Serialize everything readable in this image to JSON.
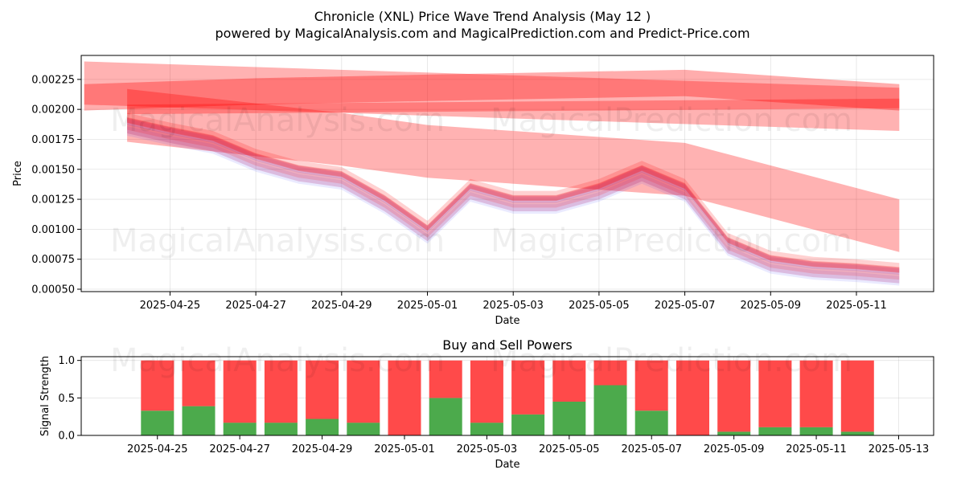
{
  "title_line1": "Chronicle (XNL) Price Wave Trend Analysis (May 12 )",
  "title_line2": "powered by MagicalAnalysis.com and MagicalPrediction.com and Predict-Price.com",
  "watermarks": [
    "MagicalAnalysis.com",
    "MagicalPrediction.com"
  ],
  "colors": {
    "buy": "#4caa4c",
    "sell": "#ff4a4a",
    "band_red": "#ff0000",
    "band_blue": "#3333ff"
  },
  "chart_data": [
    {
      "type": "area",
      "title": "",
      "xlabel": "Date",
      "ylabel": "Price",
      "xlim": [
        "2023-04-23",
        "2025-05-13"
      ],
      "ylim": [
        0.00048,
        0.00245
      ],
      "xticks": [
        "2025-04-25",
        "2025-04-27",
        "2025-04-29",
        "2025-05-01",
        "2025-05-03",
        "2025-05-05",
        "2025-05-07",
        "2025-05-09",
        "2025-05-11"
      ],
      "yticks": [
        "0.00050",
        "0.00075",
        "0.00100",
        "0.00125",
        "0.00150",
        "0.00175",
        "0.00200",
        "0.00225"
      ],
      "grid": true,
      "price_x": [
        "2025-04-24",
        "2025-04-25",
        "2025-04-26",
        "2025-04-27",
        "2025-04-28",
        "2025-04-29",
        "2025-04-30",
        "2025-05-01",
        "2025-05-02",
        "2025-05-03",
        "2025-05-04",
        "2025-05-05",
        "2025-05-06",
        "2025-05-07",
        "2025-05-08",
        "2025-05-09",
        "2025-05-10",
        "2025-05-11",
        "2025-05-12"
      ],
      "price_y": [
        0.0019,
        0.00182,
        0.00175,
        0.0016,
        0.0015,
        0.00145,
        0.00125,
        0.001,
        0.00135,
        0.00125,
        0.00125,
        0.00135,
        0.0015,
        0.00135,
        0.0009,
        0.00075,
        0.0007,
        0.00068,
        0.00065
      ],
      "wave_bands": [
        {
          "x": [
            "2025-04-23",
            "2025-05-12"
          ],
          "center": [
            0.00222,
            0.002
          ],
          "halfwidth": 0.00018
        },
        {
          "x": [
            "2025-04-23",
            "2025-04-27",
            "2025-05-01",
            "2025-05-07",
            "2025-05-12"
          ],
          "center": [
            0.0021,
            0.00215,
            0.00218,
            0.00222,
            0.0021
          ],
          "halfwidth": 0.00011
        },
        {
          "x": [
            "2025-04-24",
            "2025-04-29",
            "2025-05-01",
            "2025-05-07",
            "2025-05-12"
          ],
          "center": [
            0.00195,
            0.00175,
            0.00165,
            0.0015,
            0.00103
          ],
          "halfwidth": 0.00022
        },
        {
          "x": [
            "2025-04-24",
            "2025-05-12"
          ],
          "center": [
            0.002,
            0.00205
          ],
          "halfwidth": 4e-05
        }
      ]
    },
    {
      "type": "bar",
      "title": "Buy and Sell Powers",
      "xlabel": "Date",
      "ylabel": "Signal Strength",
      "ylim": [
        0,
        1.05
      ],
      "xlim": [
        "2025-04-23",
        "2025-05-13"
      ],
      "xticks": [
        "2025-04-25",
        "2025-04-27",
        "2025-04-29",
        "2025-05-01",
        "2025-05-03",
        "2025-05-05",
        "2025-05-07",
        "2025-05-09",
        "2025-05-11",
        "2025-05-13"
      ],
      "yticks": [
        "0.0",
        "0.5",
        "1.0"
      ],
      "grid": true,
      "categories": [
        "2025-04-25",
        "2025-04-26",
        "2025-04-27",
        "2025-04-28",
        "2025-04-29",
        "2025-04-30",
        "2025-05-01",
        "2025-05-02",
        "2025-05-03",
        "2025-05-04",
        "2025-05-05",
        "2025-05-06",
        "2025-05-07",
        "2025-05-08",
        "2025-05-09",
        "2025-05-10",
        "2025-05-11",
        "2025-05-12"
      ],
      "series": [
        {
          "values": [
            0.33,
            0.39,
            0.17,
            0.17,
            0.22,
            0.17,
            0.0,
            0.5,
            0.17,
            0.28,
            0.45,
            0.67,
            0.33,
            0.0,
            0.05,
            0.11,
            0.11,
            0.05
          ]
        },
        {
          "values": [
            0.67,
            0.61,
            0.83,
            0.83,
            0.78,
            0.83,
            1.0,
            0.5,
            0.83,
            0.72,
            0.55,
            0.33,
            0.67,
            1.0,
            0.95,
            0.89,
            0.89,
            0.95
          ]
        }
      ]
    }
  ]
}
